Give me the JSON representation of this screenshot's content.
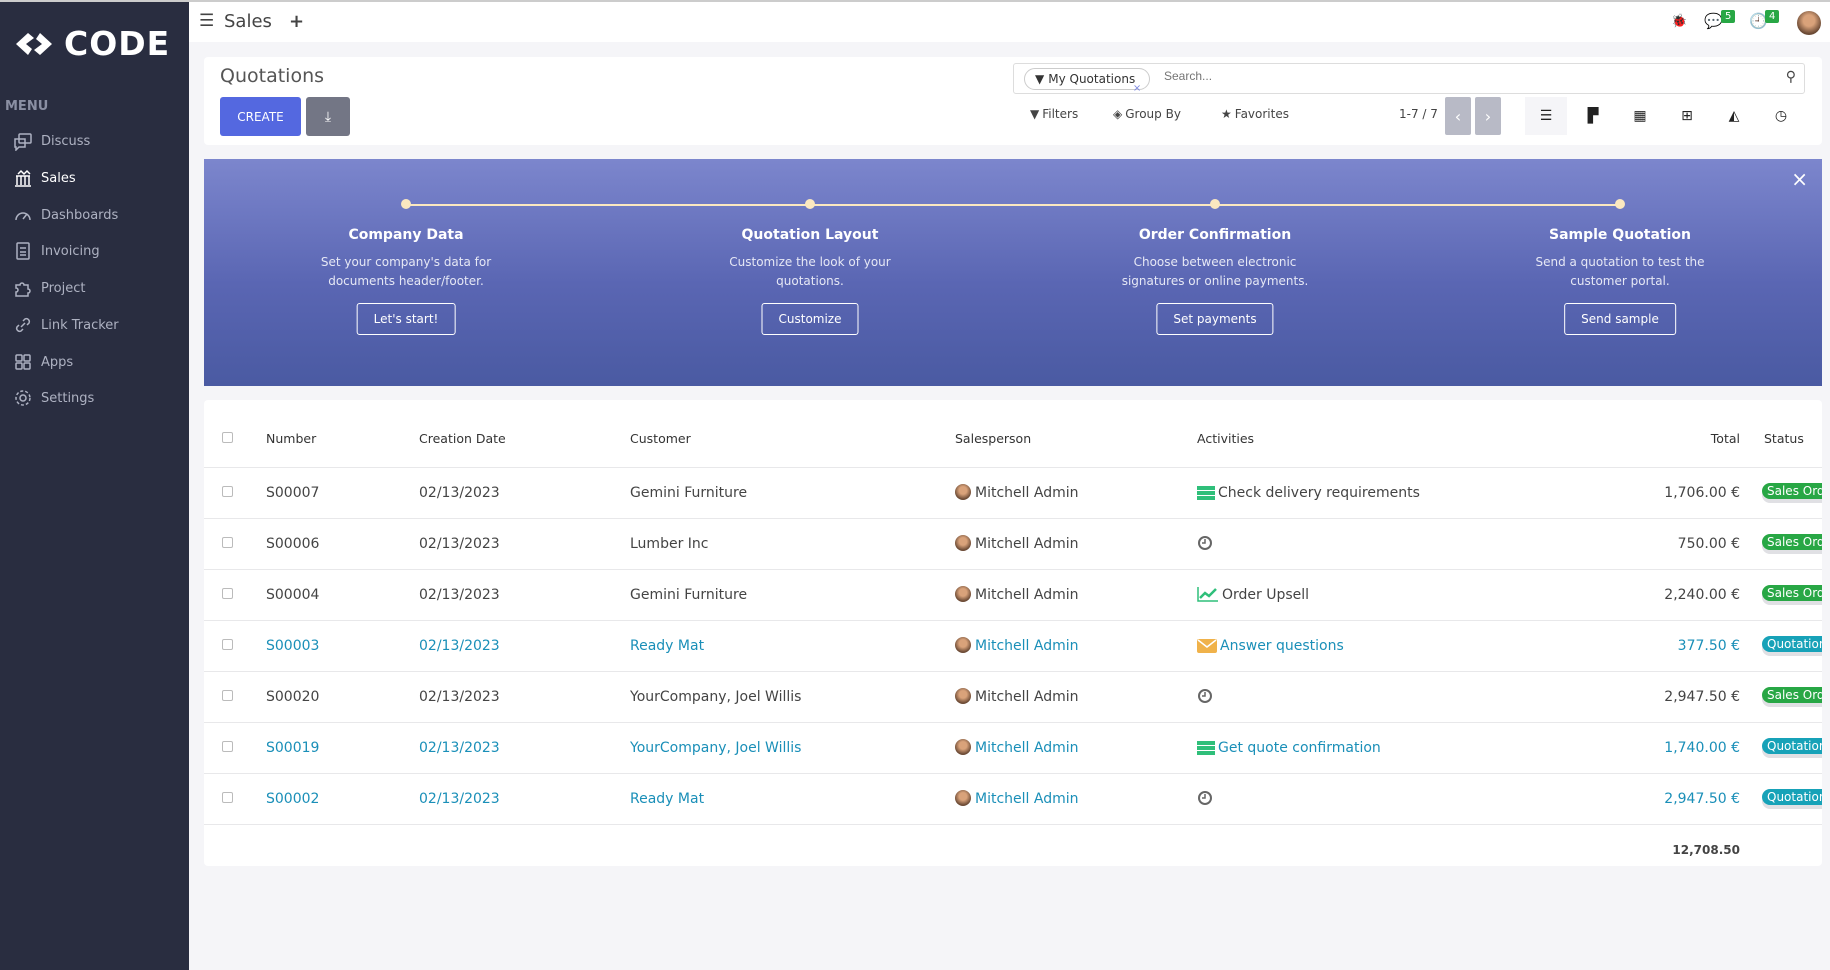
{
  "brand": {
    "name": "CODE"
  },
  "sidebar": {
    "menu_label": "MENU",
    "items": [
      {
        "label": "Discuss",
        "icon": "chat-icon"
      },
      {
        "label": "Sales",
        "icon": "bank-chart-icon",
        "active": true
      },
      {
        "label": "Dashboards",
        "icon": "gauge-icon"
      },
      {
        "label": "Invoicing",
        "icon": "invoice-icon"
      },
      {
        "label": "Project",
        "icon": "puzzle-icon"
      },
      {
        "label": "Link Tracker",
        "icon": "link-icon"
      },
      {
        "label": "Apps",
        "icon": "grid-icon"
      },
      {
        "label": "Settings",
        "icon": "gear-icon"
      }
    ]
  },
  "topbar": {
    "app": "Sales",
    "messages_count": "5",
    "activities_count": "4"
  },
  "control": {
    "title": "Quotations",
    "create": "CREATE",
    "search_facet": "My Quotations",
    "search_placeholder": "Search...",
    "filters": "Filters",
    "group_by": "Group By",
    "favorites": "Favorites",
    "pager": "1-7 / 7"
  },
  "banner": {
    "steps": [
      {
        "title": "Company Data",
        "desc": "Set your company's data for documents header/footer.",
        "button": "Let's start!"
      },
      {
        "title": "Quotation Layout",
        "desc": "Customize the look of your quotations.",
        "button": "Customize"
      },
      {
        "title": "Order Confirmation",
        "desc": "Choose between electronic signatures or online payments.",
        "button": "Set payments"
      },
      {
        "title": "Sample Quotation",
        "desc": "Send a quotation to test the customer portal.",
        "button": "Send sample"
      }
    ]
  },
  "table": {
    "headers": {
      "number": "Number",
      "date": "Creation Date",
      "customer": "Customer",
      "salesperson": "Salesperson",
      "activities": "Activities",
      "total": "Total",
      "status": "Status"
    },
    "rows": [
      {
        "number": "S00007",
        "date": "02/13/2023",
        "customer": "Gemini Furniture",
        "salesperson": "Mitchell Admin",
        "activity": "Check delivery requirements",
        "activity_icon": "todo",
        "total": "1,706.00 €",
        "status": "Sales Order",
        "link": false
      },
      {
        "number": "S00006",
        "date": "02/13/2023",
        "customer": "Lumber Inc",
        "salesperson": "Mitchell Admin",
        "activity": "",
        "activity_icon": "clock",
        "total": "750.00 €",
        "status": "Sales Order",
        "link": false
      },
      {
        "number": "S00004",
        "date": "02/13/2023",
        "customer": "Gemini Furniture",
        "salesperson": "Mitchell Admin",
        "activity": "Order Upsell",
        "activity_icon": "upsell",
        "total": "2,240.00 €",
        "status": "Sales Order",
        "link": false
      },
      {
        "number": "S00003",
        "date": "02/13/2023",
        "customer": "Ready Mat",
        "salesperson": "Mitchell Admin",
        "activity": "Answer questions",
        "activity_icon": "email",
        "total": "377.50 €",
        "status": "Quotation",
        "link": true
      },
      {
        "number": "S00020",
        "date": "02/13/2023",
        "customer": "YourCompany, Joel Willis",
        "salesperson": "Mitchell Admin",
        "activity": "",
        "activity_icon": "clock",
        "total": "2,947.50 €",
        "status": "Sales Order",
        "link": false
      },
      {
        "number": "S00019",
        "date": "02/13/2023",
        "customer": "YourCompany, Joel Willis",
        "salesperson": "Mitchell Admin",
        "activity": "Get quote confirmation",
        "activity_icon": "todo",
        "total": "1,740.00 €",
        "status": "Quotation",
        "link": true
      },
      {
        "number": "S00002",
        "date": "02/13/2023",
        "customer": "Ready Mat",
        "salesperson": "Mitchell Admin",
        "activity": "",
        "activity_icon": "clock",
        "total": "2,947.50 €",
        "status": "Quotation",
        "link": true
      }
    ],
    "sum_total": "12,708.50"
  },
  "colors": {
    "sidebar": "#292d40",
    "primary": "#5468e0",
    "sales_order": "#28a745",
    "quotation": "#17a2b8",
    "link": "#1a8fb8"
  }
}
